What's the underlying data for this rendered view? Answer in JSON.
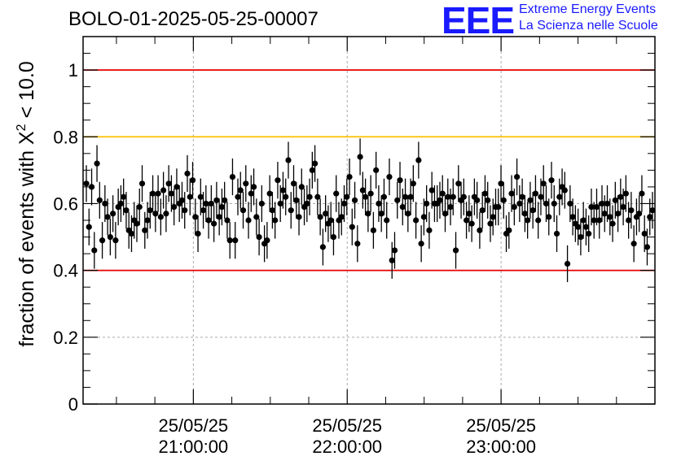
{
  "chart_data": {
    "type": "scatter",
    "title": "BOLO-01-2025-05-25-00007",
    "ylabel_prefix": "fraction of events with ",
    "ylabel_symbol": "X",
    "ylabel_sup": "2",
    "ylabel_suffix": " < 10.0",
    "ylim": [
      0,
      1.1
    ],
    "y_ticks": [
      "0",
      "0.2",
      "0.4",
      "0.6",
      "0.8",
      "1"
    ],
    "x_range": [
      "2025-05-25T20:17:00",
      "2025-05-26T00:00:00"
    ],
    "x_ticks": [
      {
        "date": "25/05/25",
        "time": "21:00:00"
      },
      {
        "date": "25/05/25",
        "time": "22:00:00"
      },
      {
        "date": "25/05/25",
        "time": "23:00:00"
      }
    ],
    "grid": true,
    "reference_lines": [
      {
        "y": 1.0,
        "color": "#e60000"
      },
      {
        "y": 0.8,
        "color": "#ffbf00"
      },
      {
        "y": 0.4,
        "color": "#e60000"
      }
    ],
    "marker_color": "#000000",
    "series": [
      {
        "error": 0.055,
        "values": [
          0.66,
          0.53,
          0.65,
          0.46,
          0.72,
          0.61,
          0.49,
          0.6,
          0.56,
          0.5,
          0.57,
          0.49,
          0.59,
          0.6,
          0.62,
          0.58,
          0.52,
          0.51,
          0.55,
          0.54,
          0.59,
          0.66,
          0.52,
          0.55,
          0.58,
          0.63,
          0.57,
          0.63,
          0.56,
          0.64,
          0.57,
          0.66,
          0.63,
          0.59,
          0.65,
          0.6,
          0.61,
          0.58,
          0.69,
          0.62,
          0.67,
          0.56,
          0.51,
          0.62,
          0.58,
          0.6,
          0.55,
          0.6,
          0.54,
          0.61,
          0.56,
          0.59,
          0.61,
          0.55,
          0.49,
          0.68,
          0.49,
          0.62,
          0.64,
          0.58,
          0.66,
          0.55,
          0.63,
          0.65,
          0.56,
          0.5,
          0.6,
          0.48,
          0.49,
          0.63,
          0.58,
          0.55,
          0.67,
          0.6,
          0.64,
          0.62,
          0.73,
          0.58,
          0.66,
          0.61,
          0.56,
          0.65,
          0.59,
          0.6,
          0.62,
          0.7,
          0.72,
          0.62,
          0.56,
          0.47,
          0.57,
          0.54,
          0.55,
          0.5,
          0.63,
          0.55,
          0.56,
          0.6,
          0.62,
          0.68,
          0.53,
          0.61,
          0.48,
          0.74,
          0.64,
          0.62,
          0.57,
          0.63,
          0.52,
          0.7,
          0.6,
          0.57,
          0.62,
          0.55,
          0.68,
          0.43,
          0.46,
          0.61,
          0.67,
          0.59,
          0.62,
          0.57,
          0.62,
          0.66,
          0.55,
          0.73,
          0.48,
          0.56,
          0.6,
          0.52,
          0.64,
          0.6,
          0.6,
          0.61,
          0.63,
          0.57,
          0.62,
          0.59,
          0.62,
          0.46,
          0.66,
          0.61,
          0.62,
          0.55,
          0.57,
          0.54,
          0.62,
          0.61,
          0.52,
          0.58,
          0.63,
          0.61,
          0.54,
          0.56,
          0.59,
          0.59,
          0.66,
          0.61,
          0.51,
          0.52,
          0.63,
          0.59,
          0.68,
          0.6,
          0.62,
          0.57,
          0.55,
          0.61,
          0.58,
          0.63,
          0.55,
          0.62,
          0.66,
          0.6,
          0.56,
          0.67,
          0.6,
          0.51,
          0.62,
          0.65,
          0.64,
          0.42,
          0.6,
          0.56,
          0.54,
          0.53,
          0.5,
          0.55,
          0.53,
          0.51,
          0.59,
          0.55,
          0.59,
          0.55,
          0.6,
          0.57,
          0.6,
          0.56,
          0.54,
          0.61,
          0.57,
          0.62,
          0.59,
          0.63,
          0.55,
          0.58,
          0.48,
          0.56,
          0.57,
          0.63,
          0.51,
          0.47,
          0.56,
          0.58
        ]
      }
    ]
  },
  "logo": {
    "mark": "EEE",
    "line1": "Extreme Energy Events",
    "line2": "La Scienza nelle Scuole",
    "color": "#1a1aff"
  }
}
